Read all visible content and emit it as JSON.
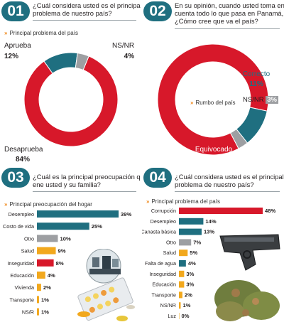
{
  "panels": {
    "p1": {
      "number": "01",
      "question_lines": [
        "¿Cuál considera usted es el principal",
        "problema de nuestro país?"
      ],
      "subtitle": "Principal problema del país"
    },
    "p2": {
      "number": "02",
      "question_lines": [
        "En su opinión, cuando usted toma en",
        "cuenta todo lo que pasa en Panamá,",
        "¿Cómo cree que va el país?"
      ],
      "center_label": "Rumbo del país"
    },
    "p3": {
      "number": "03",
      "question_lines": [
        "¿Cuál es la principal preocupación que",
        "ene usted y su familia?"
      ],
      "subtitle": "Principal preocupación del hogar"
    },
    "p4": {
      "number": "04",
      "question_lines": [
        "¿Cuál considera usted es el principal",
        "problema de nuestro país?"
      ],
      "subtitle": "Principal problema del país"
    }
  },
  "chart_data": [
    {
      "type": "pie",
      "categories": [
        "Desaprueba",
        "Aprueba",
        "NS/NR"
      ],
      "values": [
        84,
        12,
        4
      ],
      "labels": [
        "84%",
        "12%",
        "4%"
      ],
      "colors": [
        "#d7182a",
        "#1f6f80",
        "#9d9fa2"
      ]
    },
    {
      "type": "pie",
      "title": "Rumbo del país",
      "categories": [
        "Equivocado",
        "Correcto",
        "NS/NR"
      ],
      "values": [
        86,
        11,
        3
      ],
      "labels": [
        "86%",
        "11%",
        "3%"
      ],
      "colors": [
        "#d7182a",
        "#1f6f80",
        "#9d9fa2"
      ]
    },
    {
      "type": "bar",
      "orientation": "horizontal",
      "categories": [
        "Desempleo",
        "Costo de vida",
        "Otro",
        "Salud",
        "Inseguridad",
        "Educación",
        "Vivienda",
        "Transporte",
        "NS/R"
      ],
      "values": [
        39,
        25,
        10,
        9,
        8,
        4,
        2,
        1,
        1
      ],
      "labels": [
        "39%",
        "25%",
        "10%",
        "9%",
        "8%",
        "4%",
        "2%",
        "1%",
        "1%"
      ],
      "colors": [
        "#1f6f80",
        "#1f6f80",
        "#9d9fa2",
        "#f2a81d",
        "#d7182a",
        "#f2a81d",
        "#f2a81d",
        "#f2a81d",
        "#f2a81d"
      ],
      "xlim": [
        0,
        40
      ]
    },
    {
      "type": "bar",
      "orientation": "horizontal",
      "categories": [
        "Corrupción",
        "Desempleo",
        "Canasta básica",
        "Otro",
        "Salud",
        "Falta de agua",
        "Inseguridad",
        "Educación",
        "Transporte",
        "NS/NR",
        "Luz"
      ],
      "values": [
        48,
        14,
        13,
        7,
        5,
        4,
        3,
        3,
        2,
        1,
        0
      ],
      "labels": [
        "48%",
        "14%",
        "13%",
        "7%",
        "5%",
        "4%",
        "3%",
        "3%",
        "2%",
        "1%",
        "0%"
      ],
      "colors": [
        "#d7182a",
        "#1f6f80",
        "#1f6f80",
        "#9d9fa2",
        "#f2a81d",
        "#1f6f80",
        "#f2a81d",
        "#f2a81d",
        "#f2a81d",
        "#f2a81d",
        "#f2a81d"
      ],
      "xlim": [
        0,
        48
      ]
    }
  ]
}
